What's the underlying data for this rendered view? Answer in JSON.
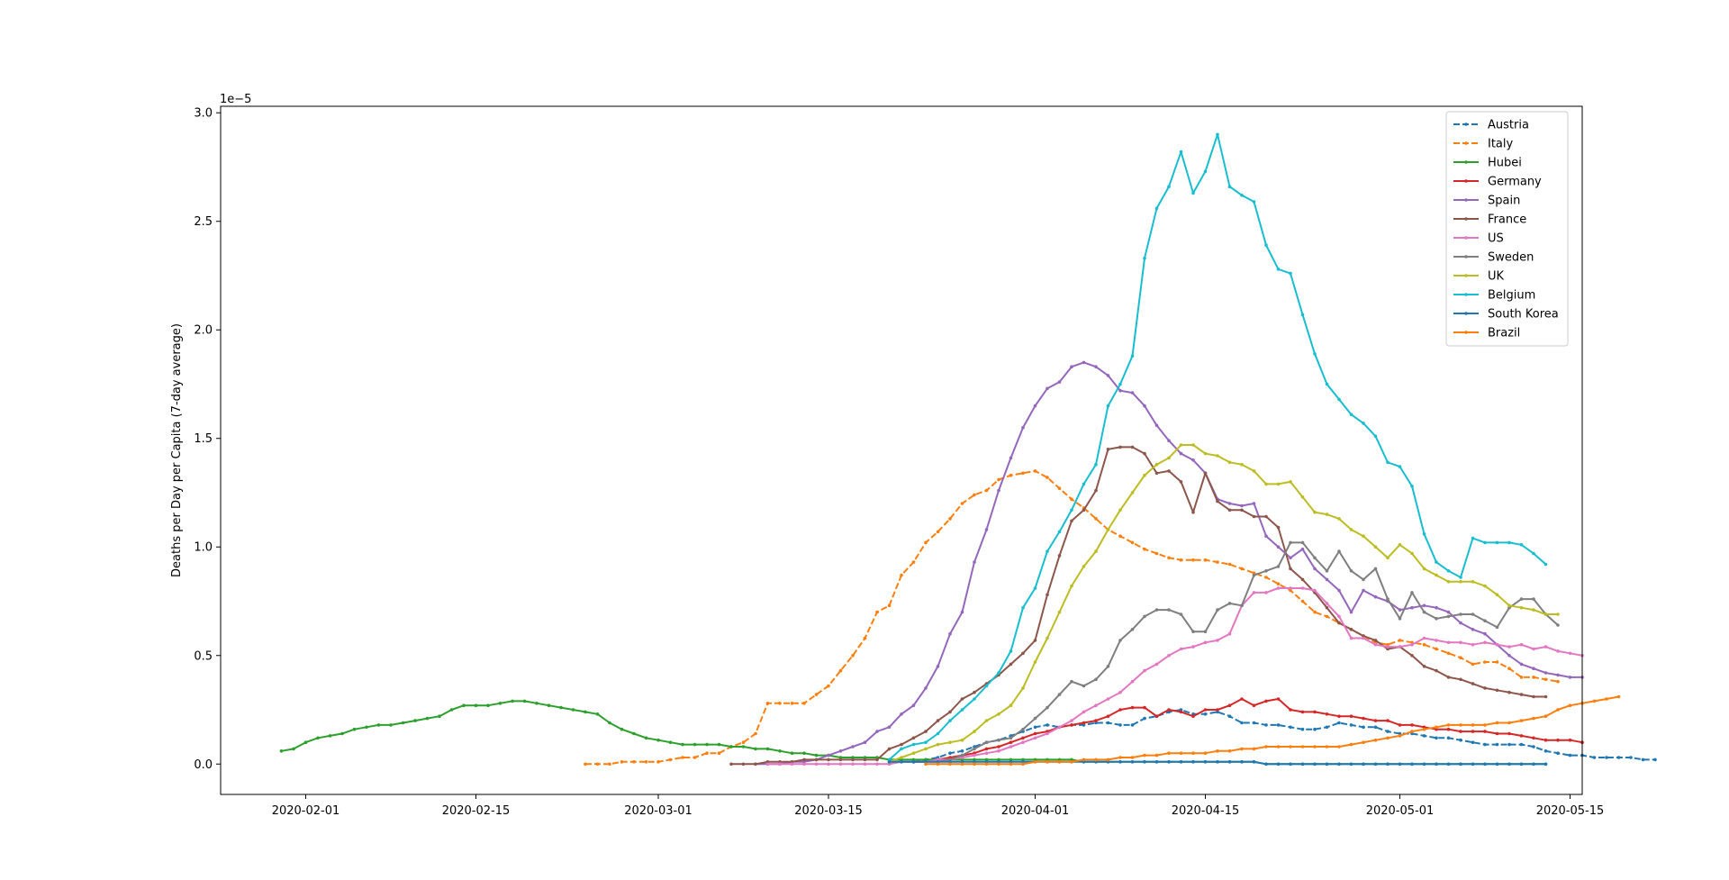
{
  "chart_data": {
    "type": "line",
    "title": "",
    "xlabel": "",
    "ylabel": "Deaths per Day per Capita (7-day average)",
    "y_offset_text": "1e−5",
    "x_ticks": [
      "2020-02-01",
      "2020-02-15",
      "2020-03-01",
      "2020-03-15",
      "2020-04-01",
      "2020-04-15",
      "2020-05-01",
      "2020-05-15"
    ],
    "y_ticks": [
      "0.0",
      "0.5",
      "1.0",
      "1.5",
      "2.0",
      "2.5",
      "3.0"
    ],
    "xlim": [
      "2020-01-25",
      "2020-05-16"
    ],
    "ylim": [
      -0.14,
      3.03
    ],
    "y_unit_multiplier": 1e-05,
    "legend_position": "upper right",
    "grid": false,
    "series": [
      {
        "name": "Austria",
        "color": "#1f77b4",
        "dash": true,
        "start": "2020-03-22",
        "values": [
          0.01,
          0.02,
          0.03,
          0.05,
          0.06,
          0.08,
          0.1,
          0.11,
          0.13,
          0.15,
          0.17,
          0.18,
          0.17,
          0.18,
          0.18,
          0.19,
          0.19,
          0.18,
          0.18,
          0.21,
          0.22,
          0.24,
          0.25,
          0.23,
          0.23,
          0.24,
          0.22,
          0.19,
          0.19,
          0.18,
          0.18,
          0.17,
          0.16,
          0.16,
          0.17,
          0.19,
          0.18,
          0.17,
          0.17,
          0.15,
          0.14,
          0.14,
          0.13,
          0.12,
          0.12,
          0.11,
          0.1,
          0.09,
          0.09,
          0.09,
          0.09,
          0.08,
          0.06,
          0.05,
          0.04,
          0.04,
          0.03,
          0.03,
          0.03,
          0.03,
          0.02,
          0.02
        ]
      },
      {
        "name": "Italy",
        "color": "#ff7f0e",
        "dash": true,
        "start": "2020-02-24",
        "values": [
          0.0,
          0.0,
          0.0,
          0.01,
          0.01,
          0.01,
          0.01,
          0.02,
          0.03,
          0.03,
          0.05,
          0.05,
          0.08,
          0.1,
          0.14,
          0.28,
          0.28,
          0.28,
          0.28,
          0.32,
          0.36,
          0.43,
          0.5,
          0.58,
          0.7,
          0.73,
          0.87,
          0.93,
          1.02,
          1.07,
          1.13,
          1.2,
          1.24,
          1.26,
          1.31,
          1.33,
          1.34,
          1.35,
          1.32,
          1.27,
          1.22,
          1.18,
          1.13,
          1.08,
          1.05,
          1.02,
          0.99,
          0.97,
          0.95,
          0.94,
          0.94,
          0.94,
          0.93,
          0.92,
          0.9,
          0.88,
          0.86,
          0.83,
          0.8,
          0.75,
          0.7,
          0.68,
          0.65,
          0.62,
          0.59,
          0.56,
          0.55,
          0.57,
          0.56,
          0.55,
          0.53,
          0.51,
          0.49,
          0.46,
          0.47,
          0.47,
          0.44,
          0.4,
          0.4,
          0.39,
          0.38
        ]
      },
      {
        "name": "Hubei",
        "color": "#2ca02c",
        "dash": false,
        "start": "2020-01-30",
        "values": [
          0.06,
          0.07,
          0.1,
          0.12,
          0.13,
          0.14,
          0.16,
          0.17,
          0.18,
          0.18,
          0.19,
          0.2,
          0.21,
          0.22,
          0.25,
          0.27,
          0.27,
          0.27,
          0.28,
          0.29,
          0.29,
          0.28,
          0.27,
          0.26,
          0.25,
          0.24,
          0.23,
          0.19,
          0.16,
          0.14,
          0.12,
          0.11,
          0.1,
          0.09,
          0.09,
          0.09,
          0.09,
          0.08,
          0.08,
          0.07,
          0.07,
          0.06,
          0.05,
          0.05,
          0.04,
          0.04,
          0.03,
          0.03,
          0.03,
          0.03,
          0.02,
          0.02,
          0.02,
          0.02,
          0.02,
          0.02,
          0.02,
          0.02,
          0.02,
          0.02,
          0.02,
          0.02,
          0.02,
          0.02,
          0.02,
          0.02,
          0.01,
          0.01,
          0.01,
          0.01,
          0.01,
          0.01,
          0.01,
          0.01,
          0.01,
          0.01,
          0.01,
          0.01,
          0.01,
          0.01,
          0.01,
          0.0,
          0.0,
          0.0,
          0.0,
          0.0,
          0.0,
          0.0,
          0.0,
          0.0,
          0.0,
          0.0,
          0.0,
          0.0,
          0.0,
          0.0,
          0.0,
          0.0,
          0.0,
          0.0,
          0.0,
          0.0,
          0.0,
          0.0,
          0.0
        ]
      },
      {
        "name": "Germany",
        "color": "#d62728",
        "dash": false,
        "start": "2020-03-22",
        "values": [
          0.01,
          0.01,
          0.02,
          0.03,
          0.04,
          0.05,
          0.07,
          0.08,
          0.1,
          0.12,
          0.14,
          0.15,
          0.17,
          0.18,
          0.19,
          0.2,
          0.22,
          0.25,
          0.26,
          0.26,
          0.22,
          0.25,
          0.24,
          0.22,
          0.25,
          0.25,
          0.27,
          0.3,
          0.27,
          0.29,
          0.3,
          0.25,
          0.24,
          0.24,
          0.23,
          0.22,
          0.22,
          0.21,
          0.2,
          0.2,
          0.18,
          0.18,
          0.17,
          0.16,
          0.16,
          0.15,
          0.15,
          0.15,
          0.14,
          0.14,
          0.13,
          0.12,
          0.11,
          0.11,
          0.11,
          0.1
        ]
      },
      {
        "name": "Spain",
        "color": "#9467bd",
        "dash": false,
        "start": "2020-03-09",
        "values": [
          0.0,
          0.0,
          0.0,
          0.01,
          0.01,
          0.02,
          0.04,
          0.06,
          0.08,
          0.1,
          0.15,
          0.17,
          0.23,
          0.27,
          0.35,
          0.45,
          0.6,
          0.7,
          0.93,
          1.08,
          1.26,
          1.41,
          1.55,
          1.65,
          1.73,
          1.76,
          1.83,
          1.85,
          1.83,
          1.79,
          1.72,
          1.71,
          1.65,
          1.56,
          1.49,
          1.43,
          1.4,
          1.34,
          1.22,
          1.2,
          1.19,
          1.2,
          1.05,
          1.0,
          0.95,
          0.99,
          0.9,
          0.85,
          0.8,
          0.7,
          0.8,
          0.77,
          0.75,
          0.71,
          0.72,
          0.73,
          0.72,
          0.7,
          0.65,
          0.62,
          0.6,
          0.55,
          0.5,
          0.46,
          0.44,
          0.42,
          0.41,
          0.4,
          0.4
        ]
      },
      {
        "name": "France",
        "color": "#8c564b",
        "dash": false,
        "start": "2020-03-07",
        "values": [
          0.0,
          0.0,
          0.0,
          0.01,
          0.01,
          0.01,
          0.02,
          0.02,
          0.02,
          0.02,
          0.02,
          0.02,
          0.02,
          0.07,
          0.09,
          0.12,
          0.15,
          0.2,
          0.24,
          0.3,
          0.33,
          0.37,
          0.41,
          0.46,
          0.51,
          0.57,
          0.78,
          0.96,
          1.12,
          1.17,
          1.26,
          1.45,
          1.46,
          1.46,
          1.43,
          1.34,
          1.35,
          1.3,
          1.16,
          1.34,
          1.21,
          1.17,
          1.17,
          1.14,
          1.14,
          1.09,
          0.9,
          0.85,
          0.79,
          0.72,
          0.65,
          0.62,
          0.59,
          0.57,
          0.53,
          0.54,
          0.5,
          0.45,
          0.43,
          0.4,
          0.39,
          0.37,
          0.35,
          0.34,
          0.33,
          0.32,
          0.31,
          0.31
        ]
      },
      {
        "name": "US",
        "color": "#e377c2",
        "dash": false,
        "start": "2020-03-10",
        "values": [
          0.0,
          0.0,
          0.0,
          0.0,
          0.0,
          0.0,
          0.0,
          0.0,
          0.0,
          0.0,
          0.0,
          0.01,
          0.01,
          0.01,
          0.02,
          0.02,
          0.03,
          0.04,
          0.05,
          0.06,
          0.08,
          0.1,
          0.12,
          0.14,
          0.17,
          0.2,
          0.24,
          0.27,
          0.3,
          0.33,
          0.38,
          0.43,
          0.46,
          0.5,
          0.53,
          0.54,
          0.56,
          0.57,
          0.6,
          0.73,
          0.79,
          0.79,
          0.81,
          0.81,
          0.81,
          0.8,
          0.74,
          0.68,
          0.58,
          0.58,
          0.55,
          0.54,
          0.54,
          0.55,
          0.58,
          0.57,
          0.56,
          0.56,
          0.55,
          0.56,
          0.55,
          0.54,
          0.55,
          0.53,
          0.54,
          0.52,
          0.51,
          0.5
        ]
      },
      {
        "name": "Sweden",
        "color": "#7f7f7f",
        "dash": false,
        "start": "2020-03-20",
        "values": [
          0.01,
          0.01,
          0.01,
          0.01,
          0.01,
          0.02,
          0.04,
          0.07,
          0.1,
          0.11,
          0.12,
          0.16,
          0.21,
          0.26,
          0.32,
          0.38,
          0.36,
          0.39,
          0.45,
          0.57,
          0.62,
          0.68,
          0.71,
          0.71,
          0.69,
          0.61,
          0.61,
          0.71,
          0.74,
          0.73,
          0.87,
          0.89,
          0.91,
          1.02,
          1.02,
          0.95,
          0.89,
          0.98,
          0.89,
          0.85,
          0.9,
          0.76,
          0.67,
          0.79,
          0.7,
          0.67,
          0.68,
          0.69,
          0.69,
          0.66,
          0.63,
          0.72,
          0.76,
          0.76,
          0.69,
          0.64
        ]
      },
      {
        "name": "UK",
        "color": "#bcbd22",
        "dash": false,
        "start": "2020-03-20",
        "values": [
          0.01,
          0.03,
          0.05,
          0.07,
          0.09,
          0.1,
          0.11,
          0.15,
          0.2,
          0.23,
          0.27,
          0.35,
          0.47,
          0.58,
          0.7,
          0.82,
          0.91,
          0.98,
          1.08,
          1.17,
          1.25,
          1.33,
          1.38,
          1.41,
          1.47,
          1.47,
          1.43,
          1.42,
          1.39,
          1.38,
          1.35,
          1.29,
          1.29,
          1.3,
          1.23,
          1.16,
          1.15,
          1.13,
          1.08,
          1.05,
          1.0,
          0.95,
          1.01,
          0.97,
          0.9,
          0.87,
          0.84,
          0.84,
          0.84,
          0.82,
          0.78,
          0.73,
          0.72,
          0.71,
          0.69,
          0.69
        ]
      },
      {
        "name": "Belgium",
        "color": "#17becf",
        "dash": false,
        "start": "2020-03-20",
        "values": [
          0.02,
          0.07,
          0.09,
          0.1,
          0.14,
          0.2,
          0.25,
          0.3,
          0.36,
          0.42,
          0.52,
          0.72,
          0.81,
          0.98,
          1.07,
          1.17,
          1.29,
          1.38,
          1.65,
          1.75,
          1.88,
          2.33,
          2.56,
          2.66,
          2.82,
          2.63,
          2.73,
          2.9,
          2.66,
          2.62,
          2.59,
          2.39,
          2.28,
          2.26,
          2.07,
          1.89,
          1.75,
          1.68,
          1.61,
          1.57,
          1.51,
          1.39,
          1.37,
          1.28,
          1.06,
          0.93,
          0.89,
          0.86,
          1.04,
          1.02,
          1.02,
          1.02,
          1.01,
          0.97,
          0.92
        ]
      },
      {
        "name": "South Korea",
        "color": "#1f77b4",
        "dash": false,
        "start": "2020-03-20",
        "values": [
          0.01,
          0.01,
          0.01,
          0.01,
          0.01,
          0.01,
          0.01,
          0.01,
          0.01,
          0.01,
          0.01,
          0.01,
          0.01,
          0.01,
          0.01,
          0.01,
          0.01,
          0.01,
          0.01,
          0.01,
          0.01,
          0.01,
          0.01,
          0.01,
          0.01,
          0.01,
          0.01,
          0.01,
          0.01,
          0.01,
          0.01,
          0.0,
          0.0,
          0.0,
          0.0,
          0.0,
          0.0,
          0.0,
          0.0,
          0.0,
          0.0,
          0.0,
          0.0,
          0.0,
          0.0,
          0.0,
          0.0,
          0.0,
          0.0,
          0.0,
          0.0,
          0.0,
          0.0,
          0.0,
          0.0
        ]
      },
      {
        "name": "Brazil",
        "color": "#ff7f0e",
        "dash": false,
        "start": "2020-03-23",
        "values": [
          0.0,
          0.0,
          0.0,
          0.0,
          0.0,
          0.0,
          0.0,
          0.0,
          0.0,
          0.01,
          0.01,
          0.01,
          0.01,
          0.02,
          0.02,
          0.02,
          0.03,
          0.03,
          0.04,
          0.04,
          0.05,
          0.05,
          0.05,
          0.05,
          0.06,
          0.06,
          0.07,
          0.07,
          0.08,
          0.08,
          0.08,
          0.08,
          0.08,
          0.08,
          0.08,
          0.09,
          0.1,
          0.11,
          0.12,
          0.13,
          0.15,
          0.16,
          0.17,
          0.18,
          0.18,
          0.18,
          0.18,
          0.19,
          0.19,
          0.2,
          0.21,
          0.22,
          0.25,
          0.27,
          0.28,
          0.29,
          0.3,
          0.31
        ]
      }
    ]
  }
}
